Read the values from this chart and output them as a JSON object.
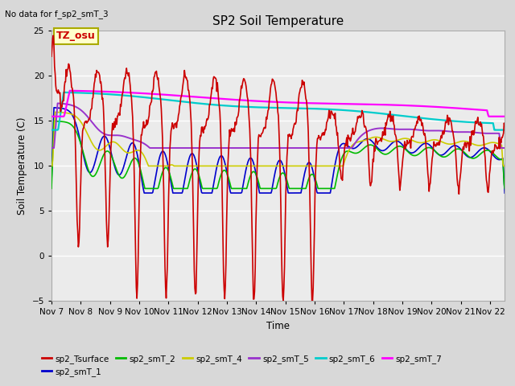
{
  "title": "SP2 Soil Temperature",
  "subtitle": "No data for f_sp2_smT_3",
  "ylabel": "Soil Temperature (C)",
  "xlabel": "Time",
  "timezone_label": "TZ_osu",
  "ylim": [
    -5,
    25
  ],
  "yticks": [
    -5,
    0,
    5,
    10,
    15,
    20,
    25
  ],
  "xtick_labels": [
    "Nov 7",
    "Nov 8",
    "Nov 9",
    "Nov 10",
    "Nov 11",
    "Nov 12",
    "Nov 13",
    "Nov 14",
    "Nov 15",
    "Nov 16",
    "Nov 17",
    "Nov 18",
    "Nov 19",
    "Nov 20",
    "Nov 21",
    "Nov 22"
  ],
  "fig_bg_color": "#d8d8d8",
  "plot_bg_color": "#ebebeb",
  "grid_color": "#ffffff",
  "series_colors": {
    "sp2_Tsurface": "#cc0000",
    "sp2_smT_1": "#0000cc",
    "sp2_smT_2": "#00bb00",
    "sp2_smT_4": "#cccc00",
    "sp2_smT_5": "#9933cc",
    "sp2_smT_6": "#00cccc",
    "sp2_smT_7": "#ff00ff"
  }
}
